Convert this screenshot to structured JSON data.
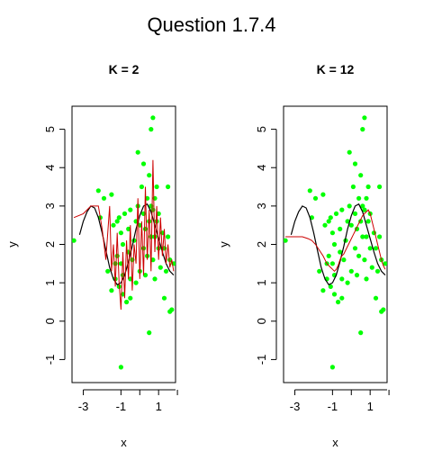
{
  "figure": {
    "title": "Question 1.7.4"
  },
  "chart_data": [
    {
      "type": "scatter",
      "title": "K = 2",
      "xlabel": "x",
      "ylabel": "y",
      "xlim": [
        -3.6,
        1.9
      ],
      "ylim": [
        -1.6,
        5.6
      ],
      "xticks": [
        -3,
        -1,
        1
      ],
      "xtick_labels": [
        "-3",
        "-1",
        "1"
      ],
      "yticks": [
        -1,
        0,
        1,
        2,
        3,
        4,
        5
      ],
      "ytick_labels": [
        "-1",
        "0",
        "1",
        "2",
        "3",
        "4",
        "5"
      ],
      "colors": {
        "points": "#00ff00",
        "true_curve": "#000000",
        "knn_fit": "#cc0000"
      },
      "series": [
        {
          "kind": "points",
          "x": [
            -3.5,
            -2.2,
            -2.1,
            -1.9,
            -1.7,
            -1.5,
            -1.5,
            -1.4,
            -1.3,
            -1.3,
            -1.2,
            -1.2,
            -1.1,
            -1.1,
            -1.0,
            -1.0,
            -1.0,
            -0.9,
            -0.9,
            -0.9,
            -0.8,
            -0.7,
            -0.6,
            -0.6,
            -0.5,
            -0.5,
            -0.5,
            -0.4,
            -0.3,
            -0.2,
            -0.2,
            -0.1,
            -0.1,
            0.0,
            0.0,
            0.1,
            0.2,
            0.2,
            0.2,
            0.3,
            0.3,
            0.4,
            0.4,
            0.5,
            0.5,
            0.5,
            0.6,
            0.6,
            0.6,
            0.7,
            0.7,
            0.7,
            0.8,
            0.8,
            0.8,
            0.9,
            0.9,
            1.0,
            1.0,
            1.1,
            1.2,
            1.3,
            1.3,
            1.4,
            1.5,
            1.5,
            1.6,
            1.6,
            1.7,
            1.8
          ],
          "y": [
            2.1,
            3.4,
            2.7,
            3.2,
            1.3,
            3.3,
            0.8,
            2.5,
            1.5,
            1.1,
            2.6,
            1.7,
            2.7,
            0.9,
            -1.2,
            1.5,
            2.3,
            0.7,
            2.0,
            1.2,
            2.8,
            0.5,
            2.4,
            1.8,
            0.6,
            1.1,
            2.9,
            1.6,
            2.1,
            1.0,
            2.6,
            3.0,
            4.4,
            1.3,
            2.5,
            3.5,
            1.9,
            2.8,
            4.1,
            1.2,
            2.4,
            3.2,
            1.7,
            2.6,
            -0.3,
            3.8,
            2.2,
            3.0,
            5.0,
            1.6,
            2.9,
            5.3,
            2.2,
            3.2,
            1.1,
            2.6,
            3.5,
            1.9,
            2.8,
            1.4,
            2.3,
            1.9,
            0.6,
            1.3,
            3.5,
            2.2,
            1.6,
            0.25,
            0.3,
            1.5
          ]
        },
        {
          "kind": "true_curve",
          "x": [
            -3.2,
            -3.0,
            -2.8,
            -2.6,
            -2.4,
            -2.2,
            -2.0,
            -1.8,
            -1.6,
            -1.4,
            -1.2,
            -1.0,
            -0.8,
            -0.6,
            -0.4,
            -0.2,
            0.0,
            0.2,
            0.4,
            0.6,
            0.8,
            1.0,
            1.2,
            1.4,
            1.6,
            1.8
          ],
          "y": [
            2.25,
            2.6,
            2.85,
            3.0,
            2.95,
            2.7,
            2.3,
            1.85,
            1.4,
            1.1,
            0.95,
            1.0,
            1.2,
            1.55,
            1.95,
            2.4,
            2.75,
            3.0,
            3.05,
            2.85,
            2.5,
            2.15,
            1.8,
            1.5,
            1.3,
            1.2
          ]
        },
        {
          "kind": "knn_fit",
          "x": [
            -3.5,
            -3.0,
            -2.6,
            -2.2,
            -2.0,
            -1.8,
            -1.6,
            -1.5,
            -1.4,
            -1.3,
            -1.2,
            -1.1,
            -1.0,
            -0.9,
            -0.8,
            -0.7,
            -0.6,
            -0.5,
            -0.4,
            -0.3,
            -0.2,
            -0.1,
            0.0,
            0.1,
            0.2,
            0.3,
            0.4,
            0.5,
            0.6,
            0.7,
            0.8,
            0.9,
            1.0,
            1.1,
            1.2,
            1.3,
            1.4,
            1.5,
            1.6,
            1.7,
            1.8
          ],
          "y": [
            2.7,
            2.8,
            3.0,
            3.0,
            2.4,
            1.6,
            3.0,
            1.3,
            2.0,
            0.9,
            2.3,
            1.0,
            0.3,
            1.8,
            0.6,
            2.1,
            1.1,
            2.5,
            0.8,
            2.0,
            1.5,
            3.2,
            1.1,
            2.6,
            1.2,
            3.5,
            1.6,
            2.9,
            1.3,
            4.2,
            1.8,
            3.0,
            1.6,
            2.7,
            1.7,
            2.4,
            1.5,
            2.0,
            1.4,
            1.6,
            1.3
          ]
        }
      ]
    },
    {
      "type": "scatter",
      "title": "K = 12",
      "xlabel": "x",
      "ylabel": "y",
      "xlim": [
        -3.6,
        1.9
      ],
      "ylim": [
        -1.6,
        5.6
      ],
      "xticks": [
        -3,
        -1,
        1
      ],
      "xtick_labels": [
        "-3",
        "-1",
        "1"
      ],
      "yticks": [
        -1,
        0,
        1,
        2,
        3,
        4,
        5
      ],
      "ytick_labels": [
        "-1",
        "0",
        "1",
        "2",
        "3",
        "4",
        "5"
      ],
      "colors": {
        "points": "#00ff00",
        "true_curve": "#000000",
        "knn_fit": "#cc0000"
      },
      "series": [
        {
          "kind": "points",
          "x": [
            -3.5,
            -2.2,
            -2.1,
            -1.9,
            -1.7,
            -1.5,
            -1.5,
            -1.4,
            -1.3,
            -1.3,
            -1.2,
            -1.2,
            -1.1,
            -1.1,
            -1.0,
            -1.0,
            -1.0,
            -0.9,
            -0.9,
            -0.9,
            -0.8,
            -0.7,
            -0.6,
            -0.6,
            -0.5,
            -0.5,
            -0.5,
            -0.4,
            -0.3,
            -0.2,
            -0.2,
            -0.1,
            -0.1,
            0.0,
            0.0,
            0.1,
            0.2,
            0.2,
            0.2,
            0.3,
            0.3,
            0.4,
            0.4,
            0.5,
            0.5,
            0.5,
            0.6,
            0.6,
            0.6,
            0.7,
            0.7,
            0.7,
            0.8,
            0.8,
            0.8,
            0.9,
            0.9,
            1.0,
            1.0,
            1.1,
            1.2,
            1.3,
            1.3,
            1.4,
            1.5,
            1.5,
            1.6,
            1.6,
            1.7,
            1.8
          ],
          "y": [
            2.1,
            3.4,
            2.7,
            3.2,
            1.3,
            3.3,
            0.8,
            2.5,
            1.5,
            1.1,
            2.6,
            1.7,
            2.7,
            0.9,
            -1.2,
            1.5,
            2.3,
            0.7,
            2.0,
            1.2,
            2.8,
            0.5,
            2.4,
            1.8,
            0.6,
            1.1,
            2.9,
            1.6,
            2.1,
            1.0,
            2.6,
            3.0,
            4.4,
            1.3,
            2.5,
            3.5,
            1.9,
            2.8,
            4.1,
            1.2,
            2.4,
            3.2,
            1.7,
            2.6,
            -0.3,
            3.8,
            2.2,
            3.0,
            5.0,
            1.6,
            2.9,
            5.3,
            2.2,
            3.2,
            1.1,
            2.6,
            3.5,
            1.9,
            2.8,
            1.4,
            2.3,
            1.9,
            0.6,
            1.3,
            3.5,
            2.2,
            1.6,
            0.25,
            0.3,
            1.5
          ]
        },
        {
          "kind": "true_curve",
          "x": [
            -3.2,
            -3.0,
            -2.8,
            -2.6,
            -2.4,
            -2.2,
            -2.0,
            -1.8,
            -1.6,
            -1.4,
            -1.2,
            -1.0,
            -0.8,
            -0.6,
            -0.4,
            -0.2,
            0.0,
            0.2,
            0.4,
            0.6,
            0.8,
            1.0,
            1.2,
            1.4,
            1.6,
            1.8
          ],
          "y": [
            2.25,
            2.6,
            2.85,
            3.0,
            2.95,
            2.7,
            2.3,
            1.85,
            1.4,
            1.1,
            0.95,
            1.0,
            1.2,
            1.55,
            1.95,
            2.4,
            2.75,
            3.0,
            3.05,
            2.85,
            2.5,
            2.15,
            1.8,
            1.5,
            1.3,
            1.2
          ]
        },
        {
          "kind": "knn_fit",
          "x": [
            -3.5,
            -3.0,
            -2.6,
            -2.3,
            -2.1,
            -1.9,
            -1.7,
            -1.5,
            -1.3,
            -1.2,
            -1.1,
            -1.0,
            -0.9,
            -0.8,
            -0.7,
            -0.6,
            -0.5,
            -0.4,
            -0.3,
            -0.2,
            -0.1,
            0.0,
            0.1,
            0.2,
            0.3,
            0.4,
            0.5,
            0.6,
            0.7,
            0.8,
            0.9,
            1.0,
            1.1,
            1.2,
            1.3,
            1.4,
            1.5,
            1.6,
            1.7,
            1.8
          ],
          "y": [
            2.2,
            2.2,
            2.2,
            2.15,
            2.1,
            2.0,
            1.85,
            1.7,
            1.5,
            1.45,
            1.4,
            1.35,
            1.3,
            1.35,
            1.45,
            1.6,
            1.7,
            1.75,
            1.85,
            1.95,
            2.05,
            2.15,
            2.25,
            2.35,
            2.45,
            2.55,
            2.65,
            2.75,
            2.8,
            2.85,
            2.9,
            2.8,
            2.6,
            2.4,
            2.2,
            2.0,
            1.8,
            1.6,
            1.45,
            1.35
          ]
        }
      ]
    }
  ]
}
